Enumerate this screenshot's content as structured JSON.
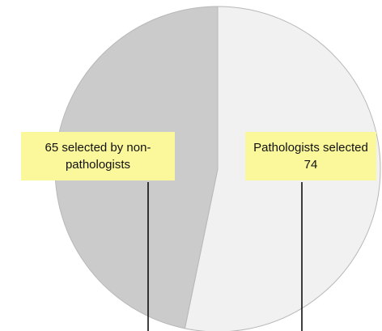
{
  "chart_data": {
    "type": "pie",
    "values": [
      74,
      65
    ],
    "value_labels": [
      "Pathologists selected 74",
      "65 selected by non-pathologists"
    ],
    "colors": [
      "#f1f1f1",
      "#cbcbcb"
    ]
  }
}
